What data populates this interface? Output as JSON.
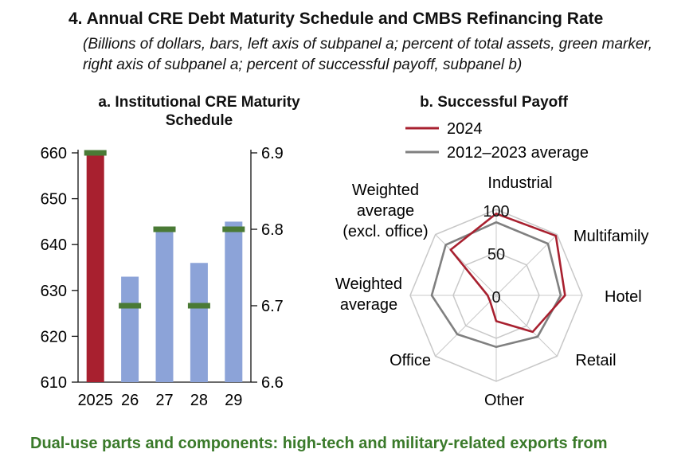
{
  "header": {
    "title": "4. Annual CRE Debt Maturity Schedule and CMBS Refinancing Rate",
    "subtitle": "(Billions of dollars, bars, left axis of subpanel a; percent of total assets, green marker, right axis of subpanel a; percent of successful payoff, subpanel b)"
  },
  "footer": {
    "text": "Dual-use parts and components: high-tech and military-related exports from"
  },
  "colors": {
    "bar_2025": "#a8202f",
    "bar_other": "#8ca3d8",
    "marker": "#4a7a35",
    "line_2024": "#a8202f",
    "line_avg": "#808080",
    "grid": "#c8c8c8"
  },
  "chart_data": [
    {
      "panel": "a",
      "type": "bar",
      "title": "a. Institutional CRE Maturity Schedule",
      "categories": [
        "2025",
        "26",
        "27",
        "28",
        "29"
      ],
      "series": [
        {
          "values": [
            660,
            633,
            643,
            636,
            645
          ],
          "axis": "left",
          "style": "bar"
        },
        {
          "values": [
            6.9,
            6.7,
            6.8,
            6.7,
            6.8
          ],
          "axis": "right",
          "style": "marker"
        }
      ],
      "ylim_left": [
        610,
        660
      ],
      "yticks_left": [
        "610",
        "620",
        "630",
        "640",
        "650",
        "660"
      ],
      "ylim_right": [
        6.6,
        6.9
      ],
      "yticks_right": [
        "6.6",
        "6.7",
        "6.8",
        "6.9"
      ],
      "grid": false
    },
    {
      "panel": "b",
      "type": "radar",
      "title": "b. Successful Payoff",
      "axes": [
        "Industrial",
        "Multifamily",
        "Hotel",
        "Retail",
        "Other",
        "Office",
        "Weighted average",
        "Weighted average (excl. office)"
      ],
      "axis_label_lines": [
        [
          "Industrial"
        ],
        [
          "Multifamily"
        ],
        [
          "Hotel"
        ],
        [
          "Retail"
        ],
        [
          "Other"
        ],
        [
          "Office"
        ],
        [
          "Weighted",
          "average"
        ],
        [
          "Weighted",
          "average",
          "(excl. office)"
        ]
      ],
      "rlim": [
        0,
        100
      ],
      "rticks": [
        "0",
        "50",
        "100"
      ],
      "legend": [
        "2024",
        "2012–2023 average"
      ],
      "legend_position": "top",
      "series": [
        {
          "name": "2024",
          "values": [
            95,
            98,
            80,
            60,
            30,
            10,
            10,
            75
          ]
        },
        {
          "name": "2012–2023 average",
          "values": [
            85,
            85,
            75,
            68,
            60,
            64,
            75,
            83
          ]
        }
      ]
    }
  ]
}
